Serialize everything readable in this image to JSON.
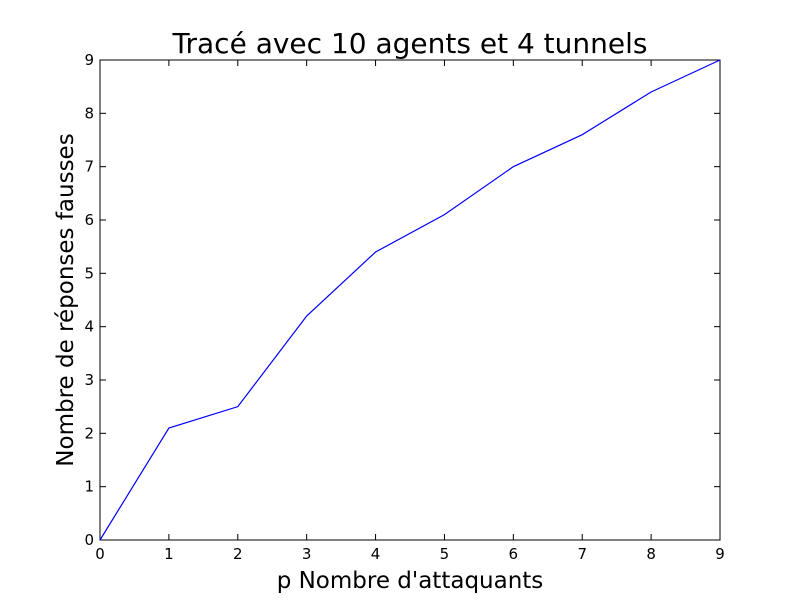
{
  "chart_data": {
    "type": "line",
    "title": "Tracé avec 10 agents et 4 tunnels",
    "xlabel": "p Nombre d'attaquants",
    "ylabel": "Nombre de réponses fausses",
    "xlim": [
      0,
      9
    ],
    "ylim": [
      0,
      9
    ],
    "xticks": [
      "0",
      "1",
      "2",
      "3",
      "4",
      "5",
      "6",
      "7",
      "8",
      "9"
    ],
    "yticks": [
      "0",
      "1",
      "2",
      "3",
      "4",
      "5",
      "6",
      "7",
      "8",
      "9"
    ],
    "grid": false,
    "series": [
      {
        "color": "#0000ff",
        "x": [
          0,
          1,
          2,
          3,
          4,
          5,
          6,
          7,
          8,
          9
        ],
        "y": [
          0,
          2.1,
          2.5,
          4.2,
          5.4,
          6.1,
          7.0,
          7.6,
          8.4,
          9.0
        ]
      }
    ]
  }
}
